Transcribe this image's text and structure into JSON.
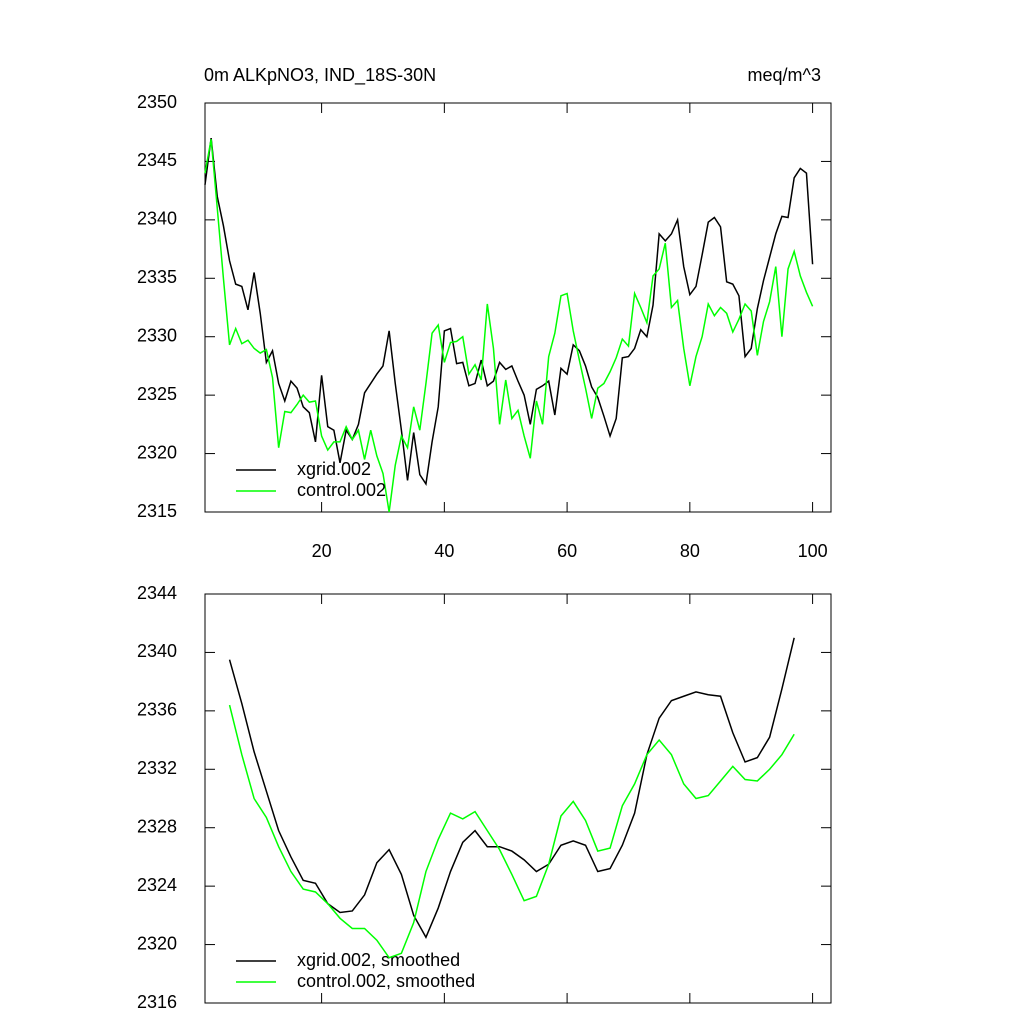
{
  "chart_data": [
    {
      "type": "line",
      "title": "0m ALKpNO3, IND_18S-30N",
      "units": "meq/m^3",
      "x": [
        1,
        2,
        3,
        4,
        5,
        6,
        7,
        8,
        9,
        10,
        11,
        12,
        13,
        14,
        15,
        16,
        17,
        18,
        19,
        20,
        21,
        22,
        23,
        24,
        25,
        26,
        27,
        28,
        29,
        30,
        31,
        32,
        33,
        34,
        35,
        36,
        37,
        38,
        39,
        40,
        41,
        42,
        43,
        44,
        45,
        46,
        47,
        48,
        49,
        50,
        51,
        52,
        53,
        54,
        55,
        56,
        57,
        58,
        59,
        60,
        61,
        62,
        63,
        64,
        65,
        66,
        67,
        68,
        69,
        70,
        71,
        72,
        73,
        74,
        75,
        76,
        77,
        78,
        79,
        80,
        81,
        82,
        83,
        84,
        85,
        86,
        87,
        88,
        89,
        90,
        91,
        92,
        93,
        94,
        95,
        96,
        97,
        98,
        99,
        100
      ],
      "series": [
        {
          "name": "xgrid.002",
          "color": "#000000",
          "values": [
            2343,
            2347,
            2342,
            2339.5,
            2336.5,
            2334.5,
            2334.3,
            2332.3,
            2335.5,
            2332,
            2327.8,
            2328.8,
            2326,
            2324.5,
            2326.2,
            2325.6,
            2324,
            2323.5,
            2321,
            2326.7,
            2322.3,
            2322,
            2319.2,
            2322,
            2321.2,
            2322.5,
            2325.2,
            2326,
            2326.8,
            2327.5,
            2330.5,
            2326,
            2322,
            2317.7,
            2321.8,
            2318.2,
            2317.4,
            2321,
            2324,
            2330.5,
            2330.7,
            2327.7,
            2327.8,
            2325.8,
            2326,
            2328,
            2325.8,
            2326.2,
            2327.8,
            2327.2,
            2327.5,
            2326.2,
            2325,
            2322.5,
            2325.5,
            2325.8,
            2326.2,
            2323.3,
            2327.3,
            2326.8,
            2329.3,
            2328.8,
            2327.5,
            2325.7,
            2324.8,
            2323.2,
            2321.5,
            2323,
            2328.2,
            2328.3,
            2329,
            2330.6,
            2330,
            2332.7,
            2338.8,
            2338.2,
            2338.8,
            2340,
            2336,
            2333.6,
            2334.3,
            2337,
            2339.8,
            2340.2,
            2339.4,
            2334.7,
            2334.5,
            2333.5,
            2328.3,
            2329,
            2332.4,
            2334.8,
            2336.8,
            2338.8,
            2340.3,
            2340.2,
            2343.6,
            2344.4,
            2344,
            2336.2
          ]
        },
        {
          "name": "control.002",
          "color": "#00ff00",
          "values": [
            2344,
            2346.9,
            2341,
            2335,
            2329.3,
            2330.7,
            2329.4,
            2329.7,
            2329,
            2328.6,
            2328.9,
            2326.5,
            2320.5,
            2323.6,
            2323.5,
            2324.2,
            2325,
            2324.4,
            2324.5,
            2321.5,
            2320.3,
            2321,
            2321,
            2322.3,
            2321.2,
            2322,
            2319.5,
            2322,
            2319.8,
            2318.3,
            2315,
            2319,
            2321.5,
            2320.5,
            2324,
            2322,
            2326,
            2330.3,
            2331,
            2327.8,
            2329.5,
            2329.6,
            2330,
            2326.8,
            2327.6,
            2326.3,
            2332.8,
            2329,
            2322.5,
            2326.3,
            2323,
            2323.7,
            2321.5,
            2319.6,
            2324.5,
            2322.5,
            2328.3,
            2330.3,
            2333.5,
            2333.7,
            2330.5,
            2328,
            2325.6,
            2323,
            2325.6,
            2326,
            2327,
            2328.2,
            2329.8,
            2329.2,
            2333.7,
            2332.5,
            2331.2,
            2335.2,
            2335.8,
            2338,
            2332.5,
            2333.1,
            2329,
            2325.8,
            2328.3,
            2330,
            2332.8,
            2331.8,
            2332.5,
            2332,
            2330.4,
            2331.5,
            2332.8,
            2332.2,
            2328.4,
            2331.3,
            2333,
            2336,
            2330,
            2335.8,
            2337.3,
            2335.2,
            2333.8,
            2332.6
          ]
        }
      ],
      "xlim": [
        1,
        103
      ],
      "xticks": [
        20,
        40,
        60,
        80,
        100
      ],
      "xtick_labels": true,
      "ylim": [
        2315,
        2350
      ],
      "yticks": [
        2315,
        2320,
        2325,
        2330,
        2335,
        2340,
        2345,
        2350
      ],
      "legend": "lower left"
    },
    {
      "type": "line",
      "x": [
        5,
        7,
        9,
        11,
        13,
        15,
        17,
        19,
        21,
        23,
        25,
        27,
        29,
        31,
        33,
        35,
        37,
        39,
        41,
        43,
        45,
        47,
        49,
        51,
        53,
        55,
        57,
        59,
        61,
        63,
        65,
        67,
        69,
        71,
        73,
        75,
        77,
        79,
        81,
        83,
        85,
        87,
        89,
        91,
        93,
        95,
        97
      ],
      "series": [
        {
          "name": "xgrid.002, smoothed",
          "color": "#000000",
          "values": [
            2339.5,
            2336.5,
            2333.2,
            2330.5,
            2327.8,
            2326,
            2324.4,
            2324.2,
            2322.8,
            2322.2,
            2322.3,
            2323.4,
            2325.6,
            2326.5,
            2324.8,
            2322,
            2320.5,
            2322.5,
            2325,
            2327,
            2327.8,
            2326.7,
            2326.7,
            2326.4,
            2325.8,
            2325,
            2325.5,
            2326.8,
            2327.1,
            2326.8,
            2325,
            2325.2,
            2326.8,
            2329,
            2333,
            2335.5,
            2336.7,
            2337,
            2337.3,
            2337.1,
            2337,
            2334.5,
            2332.5,
            2332.8,
            2334.2,
            2337.5,
            2341
          ]
        },
        {
          "name": "control.002, smoothed",
          "color": "#00ff00",
          "values": [
            2336.4,
            2333,
            2330,
            2328.7,
            2326.7,
            2325,
            2323.8,
            2323.6,
            2322.8,
            2321.8,
            2321.1,
            2321.1,
            2320.3,
            2319.1,
            2319.4,
            2321.5,
            2325,
            2327.2,
            2329,
            2328.6,
            2329.1,
            2327.8,
            2326.5,
            2324.8,
            2323,
            2323.3,
            2325.5,
            2328.8,
            2329.8,
            2328.5,
            2326.4,
            2326.6,
            2329.5,
            2331,
            2333,
            2334,
            2333,
            2331,
            2330,
            2330.2,
            2331.2,
            2332.2,
            2331.3,
            2331.2,
            2332,
            2333,
            2334.4
          ]
        }
      ],
      "xlim": [
        1,
        103
      ],
      "xticks": [
        20,
        40,
        60,
        80,
        100
      ],
      "xtick_labels": false,
      "ylim": [
        2316,
        2344
      ],
      "yticks": [
        2316,
        2320,
        2324,
        2328,
        2332,
        2336,
        2340,
        2344
      ],
      "legend": "lower left"
    }
  ]
}
